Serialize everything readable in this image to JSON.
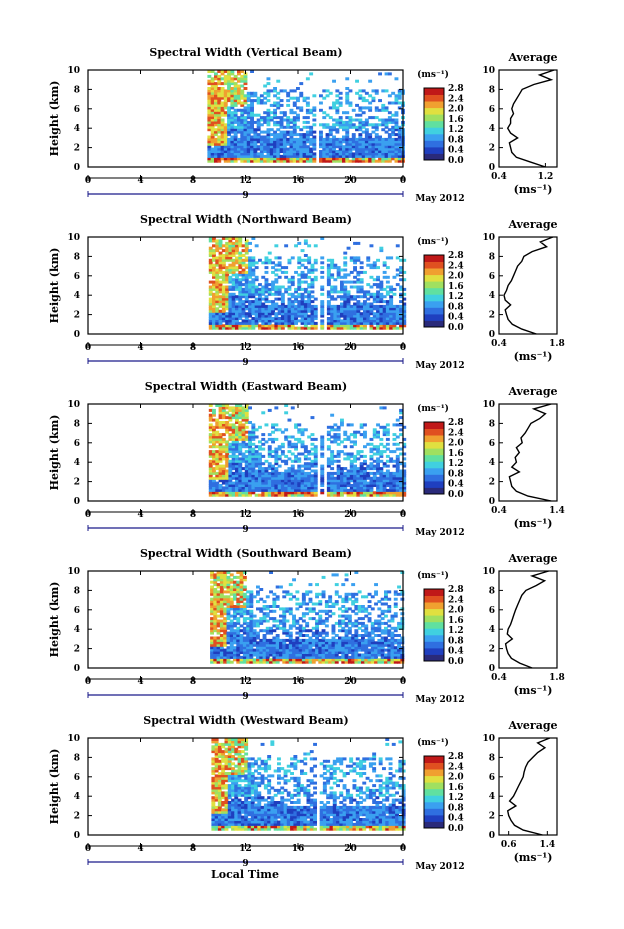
{
  "figure": {
    "xlabel": "Local Time",
    "colorbar_unit": "(ms⁻¹)",
    "colorbar_ticks": [
      "0.0",
      "0.4",
      "0.8",
      "1.2",
      "1.6",
      "2.0",
      "2.4",
      "2.8"
    ],
    "date_label": "May 2012",
    "date_marker": "9",
    "heatmap_xticks": [
      "0",
      "4",
      "8",
      "12",
      "16",
      "20",
      "0"
    ],
    "height_ticks": [
      "0",
      "2",
      "4",
      "6",
      "8",
      "10"
    ],
    "avg_title": "Average",
    "avg_xlabel": "(ms⁻¹)",
    "colorscale": [
      "#2a2a7a",
      "#1f3fbf",
      "#2f6fe0",
      "#3aa0f0",
      "#40d0e0",
      "#60e0a0",
      "#a0e060",
      "#e0e040",
      "#f0a030",
      "#e05020",
      "#c01818"
    ]
  },
  "chart_data": [
    {
      "type": "heatmap",
      "title": "Spectral Width (Vertical Beam)",
      "xlabel": "",
      "ylabel": "Height (km)",
      "xlim": [
        0,
        24
      ],
      "ylim": [
        0,
        10
      ],
      "x_ticks": [
        "0",
        "4",
        "8",
        "12",
        "16",
        "20",
        "0"
      ],
      "y_ticks": [
        "0",
        "2",
        "4",
        "6",
        "8",
        "10"
      ],
      "colorbar": {
        "label": "(ms⁻¹)",
        "range": [
          0.0,
          2.8
        ],
        "ticks": [
          "0.0",
          "0.4",
          "0.8",
          "1.2",
          "1.6",
          "2.0",
          "2.4",
          "2.8"
        ]
      },
      "data_start_hour": 9.1,
      "profile": {
        "title": "Average",
        "xlabel": "(ms⁻¹)",
        "xlim": [
          0.4,
          1.4
        ],
        "x_ticks": [
          "0.4",
          "1.2"
        ],
        "heights": [
          0,
          0.5,
          1,
          1.5,
          2,
          2.5,
          3,
          3.5,
          4,
          4.5,
          5,
          5.5,
          6,
          6.5,
          7,
          7.5,
          8,
          8.5,
          9,
          9.5,
          10
        ],
        "values": [
          1.2,
          0.95,
          0.7,
          0.62,
          0.6,
          0.58,
          0.72,
          0.6,
          0.55,
          0.6,
          0.6,
          0.65,
          0.62,
          0.65,
          0.7,
          0.75,
          0.8,
          1.0,
          1.3,
          1.1,
          1.35
        ]
      }
    },
    {
      "type": "heatmap",
      "title": "Spectral Width (Northward Beam)",
      "xlabel": "",
      "ylabel": "Height (km)",
      "xlim": [
        0,
        24
      ],
      "ylim": [
        0,
        10
      ],
      "x_ticks": [
        "0",
        "4",
        "8",
        "12",
        "16",
        "20",
        "0"
      ],
      "y_ticks": [
        "0",
        "2",
        "4",
        "6",
        "8",
        "10"
      ],
      "colorbar": {
        "label": "(ms⁻¹)",
        "range": [
          0.0,
          2.8
        ],
        "ticks": [
          "0.0",
          "0.4",
          "0.8",
          "1.2",
          "1.6",
          "2.0",
          "2.4",
          "2.8"
        ]
      },
      "data_start_hour": 9.2,
      "profile": {
        "title": "Average",
        "xlabel": "(ms⁻¹)",
        "xlim": [
          0.4,
          1.8
        ],
        "x_ticks": [
          "0.4",
          "1.8"
        ],
        "heights": [
          0,
          0.5,
          1,
          1.5,
          2,
          2.5,
          3,
          3.5,
          4,
          4.5,
          5,
          5.5,
          6,
          6.5,
          7,
          7.5,
          8,
          8.5,
          9,
          9.5,
          10
        ],
        "values": [
          1.3,
          0.95,
          0.72,
          0.62,
          0.58,
          0.55,
          0.68,
          0.55,
          0.52,
          0.58,
          0.62,
          0.7,
          0.75,
          0.8,
          0.85,
          0.95,
          1.0,
          1.2,
          1.55,
          1.4,
          1.7
        ]
      }
    },
    {
      "type": "heatmap",
      "title": "Spectral Width (Eastward Beam)",
      "xlabel": "",
      "ylabel": "Height (km)",
      "xlim": [
        0,
        24
      ],
      "ylim": [
        0,
        10
      ],
      "x_ticks": [
        "0",
        "4",
        "8",
        "12",
        "16",
        "20",
        "0"
      ],
      "y_ticks": [
        "0",
        "2",
        "4",
        "6",
        "8",
        "10"
      ],
      "colorbar": {
        "label": "(ms⁻¹)",
        "range": [
          0.0,
          2.8
        ],
        "ticks": [
          "0.0",
          "0.4",
          "0.8",
          "1.2",
          "1.6",
          "2.0",
          "2.4",
          "2.8"
        ]
      },
      "data_start_hour": 9.2,
      "profile": {
        "title": "Average",
        "xlabel": "(ms⁻¹)",
        "xlim": [
          0.4,
          1.4
        ],
        "x_ticks": [
          "0.4",
          "1.4"
        ],
        "heights": [
          0,
          0.5,
          1,
          1.5,
          2,
          2.5,
          3,
          3.5,
          4,
          4.5,
          5,
          5.5,
          6,
          6.5,
          7,
          7.5,
          8,
          8.5,
          9,
          9.5,
          10
        ],
        "values": [
          1.3,
          0.9,
          0.7,
          0.62,
          0.6,
          0.58,
          0.75,
          0.62,
          0.7,
          0.68,
          0.75,
          0.7,
          0.8,
          0.78,
          0.85,
          0.9,
          0.95,
          1.1,
          1.2,
          1.0,
          1.3
        ]
      }
    },
    {
      "type": "heatmap",
      "title": "Spectral Width (Southward Beam)",
      "xlabel": "",
      "ylabel": "Height (km)",
      "xlim": [
        0,
        24
      ],
      "ylim": [
        0,
        10
      ],
      "x_ticks": [
        "0",
        "4",
        "8",
        "12",
        "16",
        "20",
        "0"
      ],
      "y_ticks": [
        "0",
        "2",
        "4",
        "6",
        "8",
        "10"
      ],
      "colorbar": {
        "label": "(ms⁻¹)",
        "range": [
          0.0,
          2.8
        ],
        "ticks": [
          "0.0",
          "0.4",
          "0.8",
          "1.2",
          "1.6",
          "2.0",
          "2.4",
          "2.8"
        ]
      },
      "data_start_hour": 9.3,
      "profile": {
        "title": "Average",
        "xlabel": "(ms⁻¹)",
        "xlim": [
          0.4,
          1.8
        ],
        "x_ticks": [
          "0.4",
          "1.8"
        ],
        "heights": [
          0,
          0.5,
          1,
          1.5,
          2,
          2.5,
          3,
          3.5,
          4,
          4.5,
          5,
          5.5,
          6,
          6.5,
          7,
          7.5,
          8,
          8.5,
          9,
          9.5,
          10
        ],
        "values": [
          1.2,
          0.9,
          0.7,
          0.62,
          0.58,
          0.56,
          0.72,
          0.6,
          0.62,
          0.68,
          0.72,
          0.76,
          0.8,
          0.85,
          0.9,
          0.95,
          1.05,
          1.3,
          1.5,
          1.2,
          1.6
        ]
      }
    },
    {
      "type": "heatmap",
      "title": "Spectral Width (Westward Beam)",
      "xlabel": "Local Time",
      "ylabel": "Height (km)",
      "xlim": [
        0,
        24
      ],
      "ylim": [
        0,
        10
      ],
      "x_ticks": [
        "0",
        "4",
        "8",
        "12",
        "16",
        "20",
        "0"
      ],
      "y_ticks": [
        "0",
        "2",
        "4",
        "6",
        "8",
        "10"
      ],
      "colorbar": {
        "label": "(ms⁻¹)",
        "range": [
          0.0,
          2.8
        ],
        "ticks": [
          "0.0",
          "0.4",
          "0.8",
          "1.2",
          "1.6",
          "2.0",
          "2.4",
          "2.8"
        ]
      },
      "data_start_hour": 9.4,
      "profile": {
        "title": "Average",
        "xlabel": "(ms⁻¹)",
        "xlim": [
          0.4,
          1.6
        ],
        "x_ticks": [
          "0.6",
          "1.4"
        ],
        "heights": [
          0,
          0.5,
          1,
          1.5,
          2,
          2.5,
          3,
          3.5,
          4,
          4.5,
          5,
          5.5,
          6,
          6.5,
          7,
          7.5,
          8,
          8.5,
          9,
          9.5,
          10
        ],
        "values": [
          1.3,
          0.9,
          0.72,
          0.65,
          0.6,
          0.58,
          0.75,
          0.62,
          0.7,
          0.75,
          0.8,
          0.85,
          0.9,
          0.92,
          0.95,
          1.0,
          1.1,
          1.2,
          1.35,
          1.2,
          1.45
        ]
      }
    }
  ]
}
